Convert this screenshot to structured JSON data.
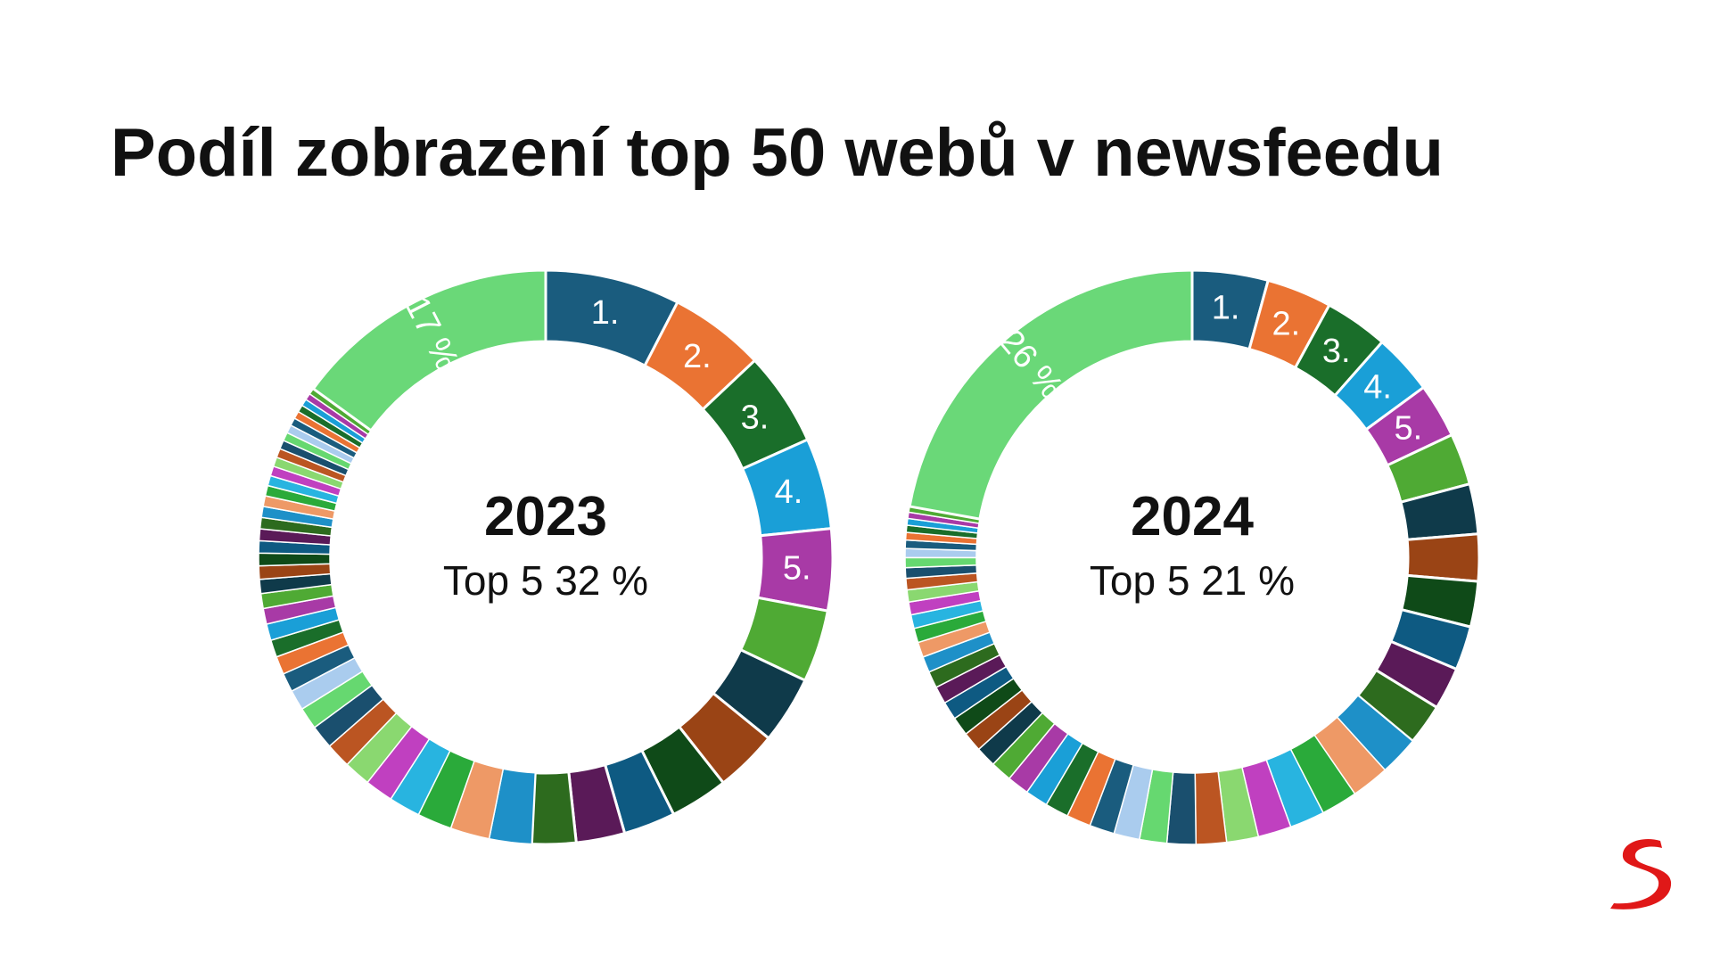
{
  "title": "Podíl zobrazení top 50 webů v newsfeedu",
  "colors": {
    "palette": [
      "#1a5c7e",
      "#ea7333",
      "#1a6e2a",
      "#1a9fd7",
      "#a83aa6",
      "#4faa34",
      "#0f3a4a",
      "#9a4415",
      "#0f4a18",
      "#0e5a82",
      "#5a1a58",
      "#2d6b1e",
      "#1e90c8",
      "#ee9966",
      "#2aaa3a",
      "#28b4e0",
      "#c040c0",
      "#8ad870",
      "#bb5522",
      "#1a4f6e",
      "#66d870",
      "#aaccee"
    ],
    "rest": "#6ad878",
    "separator": "#ffffff"
  },
  "chart_data": [
    {
      "type": "pie",
      "year": "2023",
      "subtitle": "Top 5 32 %",
      "rest_label": "17 %",
      "rest_value": 17,
      "top_labels": [
        "1.",
        "2.",
        "3.",
        "4.",
        "5."
      ],
      "values": [
        8.6,
        6.1,
        6.0,
        5.8,
        5.2,
        4.6,
        4.3,
        4.0,
        3.7,
        3.3,
        3.1,
        2.8,
        2.7,
        2.5,
        2.2,
        2.0,
        1.8,
        1.7,
        1.6,
        1.5,
        1.4,
        1.3,
        1.2,
        1.15,
        1.1,
        1.05,
        1.0,
        0.95,
        0.9,
        0.85,
        0.8,
        0.78,
        0.75,
        0.72,
        0.7,
        0.68,
        0.66,
        0.64,
        0.62,
        0.6,
        0.58,
        0.56,
        0.54,
        0.52,
        0.5,
        0.48,
        0.46,
        0.44,
        0.42,
        0.4
      ]
    },
    {
      "type": "pie",
      "year": "2024",
      "subtitle": "Top 5 21 %",
      "rest_label": "26 %",
      "rest_value": 26,
      "top_labels": [
        "1.",
        "2.",
        "3.",
        "4.",
        "5."
      ],
      "values": [
        5.0,
        4.3,
        4.2,
        4.0,
        3.6,
        3.4,
        3.3,
        3.1,
        3.0,
        2.9,
        2.8,
        2.7,
        2.6,
        2.5,
        2.4,
        2.3,
        2.2,
        2.1,
        2.0,
        1.9,
        1.8,
        1.7,
        1.65,
        1.6,
        1.55,
        1.5,
        1.45,
        1.4,
        1.35,
        1.3,
        1.25,
        1.2,
        1.15,
        1.1,
        1.05,
        1.0,
        0.95,
        0.9,
        0.85,
        0.8,
        0.75,
        0.7,
        0.65,
        0.6,
        0.55,
        0.5,
        0.47,
        0.44,
        0.41,
        0.38
      ]
    }
  ]
}
